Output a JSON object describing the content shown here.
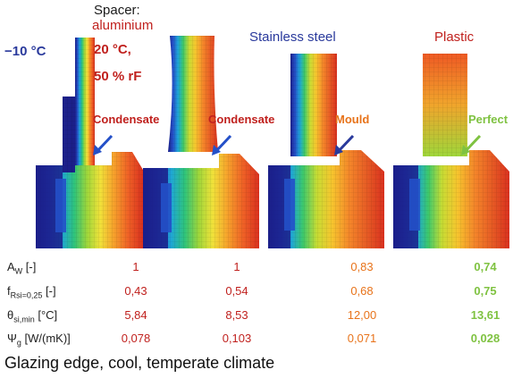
{
  "header": {
    "outside_temp": "−10 °C",
    "spacer_label": "Spacer:",
    "spacer_material": "aluminium",
    "inside_temp": "20 °C,",
    "inside_humidity": "50 % rF",
    "col2_title": "Stainless steel",
    "col3_title": "Plastic"
  },
  "panels": [
    {
      "annotation": "Condensate",
      "color": "#c0211e"
    },
    {
      "annotation": "Condensate",
      "color": "#c0211e"
    },
    {
      "annotation": "Mould",
      "color": "#e8731a"
    },
    {
      "annotation": "Perfect",
      "color": "#7fc241"
    }
  ],
  "table": {
    "rows": [
      {
        "label_main": "A",
        "label_sub": "W",
        "label_rest": " [-]",
        "values": [
          "1",
          "1",
          "0,83",
          "0,74"
        ]
      },
      {
        "label_main": "f",
        "label_sub": "Rsi=0,25",
        "label_rest": " [-]",
        "values": [
          "0,43",
          "0,54",
          "0,68",
          "0,75"
        ]
      },
      {
        "label_main": "θ",
        "label_sub": "si,min",
        "label_rest": " [°C]",
        "values": [
          "5,84",
          "8,53",
          "12,00",
          "13,61"
        ]
      },
      {
        "label_main": "Ψ",
        "label_sub": "g",
        "label_rest": " [W/(mK)]",
        "values": [
          "0,078",
          "0,103",
          "0,071",
          "0,028"
        ]
      }
    ],
    "column_colors": [
      "#c0211e",
      "#c0211e",
      "#e8731a",
      "#7fc241"
    ]
  },
  "caption": "Glazing edge, cool, temperate climate",
  "colors": {
    "red": "#c0211e",
    "blue": "#2a3a9c",
    "orange": "#e8731a",
    "green": "#7fc241"
  }
}
